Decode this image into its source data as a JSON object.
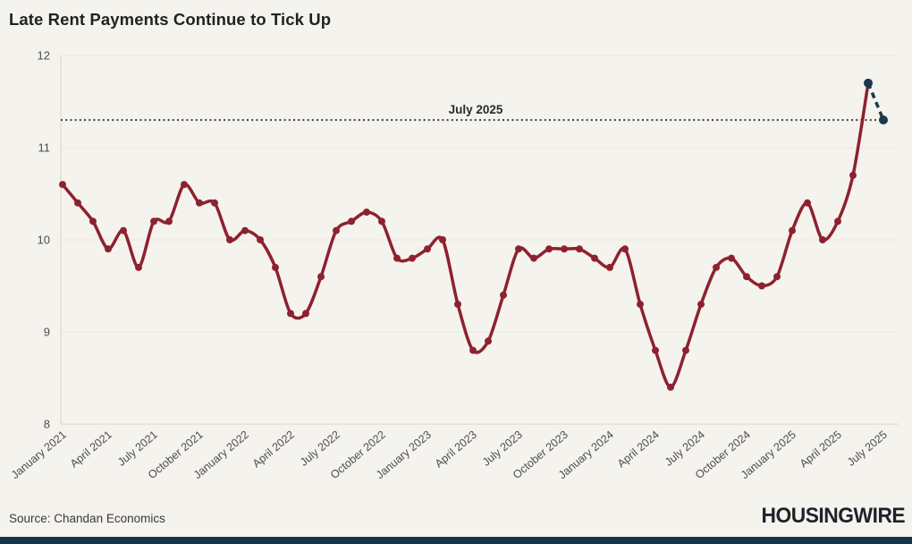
{
  "header": {
    "title": "Late Rent Payments Continue to Tick Up"
  },
  "footer": {
    "source": "Source: Chandan Economics",
    "brand": "HOUSINGWIRE"
  },
  "colors": {
    "background": "#f5f3ed",
    "line": "#8e2130",
    "highlight": "#1b394b",
    "reference": "#3d3d3d",
    "reference_label": "#2a2a2a",
    "grid": "#ebe8e0",
    "axis": "#d8d5ca",
    "tick_text": "#4c4c4c",
    "brand_bar": "#16344a"
  },
  "chart_data": {
    "type": "line",
    "title": "Late Rent Payments Continue to Tick Up",
    "xlabel": "",
    "ylabel": "",
    "ylim": [
      8,
      12
    ],
    "yticks": [
      8,
      9,
      10,
      11,
      12
    ],
    "grid": "horizontal",
    "legend_position": "none",
    "xtick_every": 3,
    "x": [
      "January 2021",
      "February 2021",
      "March 2021",
      "April 2021",
      "May 2021",
      "June 2021",
      "July 2021",
      "August 2021",
      "September 2021",
      "October 2021",
      "November 2021",
      "December 2021",
      "January 2022",
      "February 2022",
      "March 2022",
      "April 2022",
      "May 2022",
      "June 2022",
      "July 2022",
      "August 2022",
      "September 2022",
      "October 2022",
      "November 2022",
      "December 2022",
      "January 2023",
      "February 2023",
      "March 2023",
      "April 2023",
      "May 2023",
      "June 2023",
      "July 2023",
      "August 2023",
      "September 2023",
      "October 2023",
      "November 2023",
      "December 2023",
      "January 2024",
      "February 2024",
      "March 2024",
      "April 2024",
      "May 2024",
      "June 2024",
      "July 2024",
      "August 2024",
      "September 2024",
      "October 2024",
      "November 2024",
      "December 2024",
      "January 2025",
      "February 2025",
      "March 2025",
      "April 2025",
      "May 2025",
      "June 2025",
      "July 2025"
    ],
    "values": [
      10.6,
      10.4,
      10.2,
      9.9,
      10.1,
      9.7,
      10.2,
      10.2,
      10.6,
      10.4,
      10.4,
      10.0,
      10.1,
      10.0,
      9.7,
      9.2,
      9.2,
      9.6,
      10.1,
      10.2,
      10.3,
      10.2,
      9.8,
      9.8,
      9.9,
      10.0,
      9.3,
      8.8,
      8.9,
      9.4,
      9.9,
      9.8,
      9.9,
      9.9,
      9.9,
      9.8,
      9.7,
      9.9,
      9.3,
      8.8,
      8.4,
      8.8,
      9.3,
      9.7,
      9.8,
      9.6,
      9.5,
      9.6,
      10.1,
      10.4,
      10.0,
      10.2,
      10.7,
      11.7,
      11.3
    ],
    "solid_end_index": 53,
    "dashed_segment_indices": [
      53,
      54
    ],
    "highlight_indices": [
      53,
      54
    ],
    "reference_line": {
      "value": 11.3,
      "label": "July 2025",
      "style": "dotted"
    }
  }
}
